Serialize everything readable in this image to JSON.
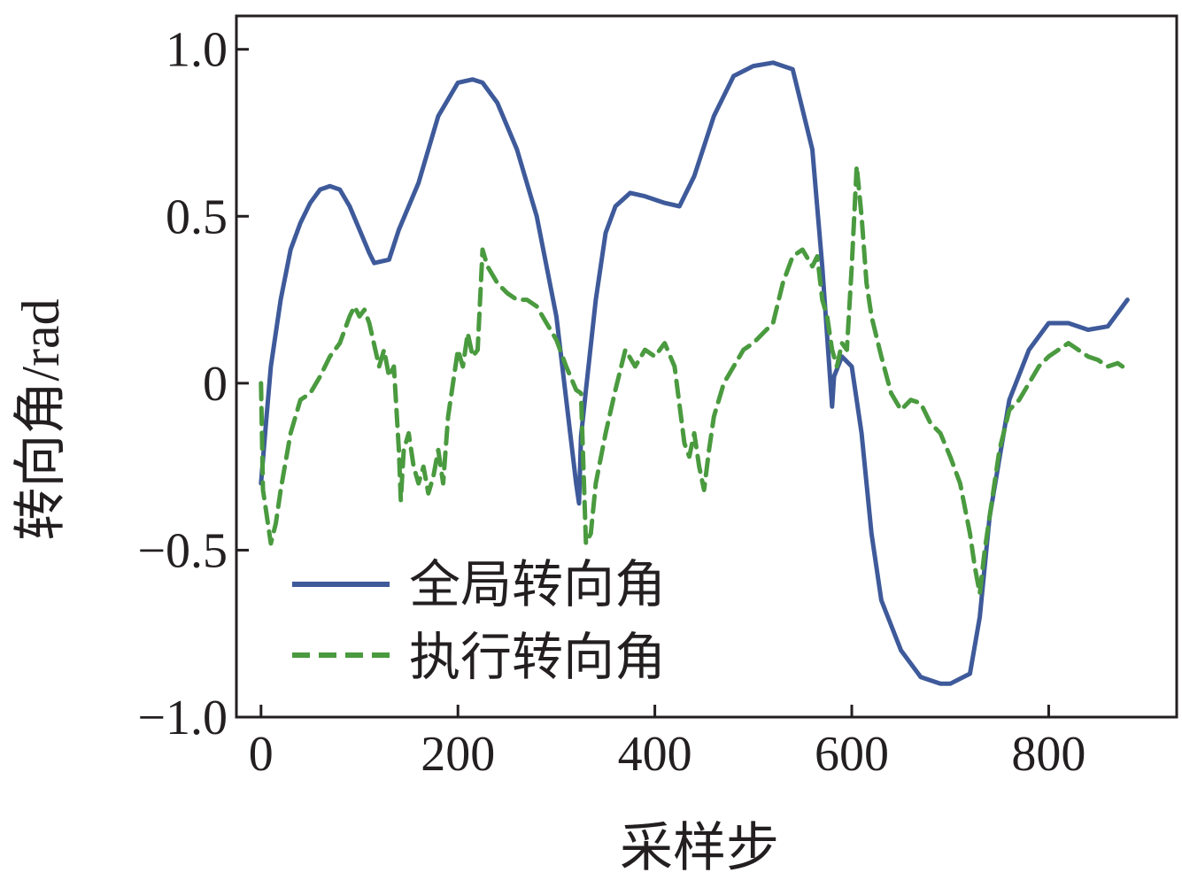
{
  "chart_data": {
    "type": "line",
    "xlabel": "采样步",
    "ylabel": "转向角/rad",
    "xlim": [
      -25,
      930
    ],
    "ylim": [
      -1.0,
      1.1
    ],
    "x_ticks": [
      "0",
      "200",
      "400",
      "600",
      "800"
    ],
    "x_tick_values": [
      0,
      200,
      400,
      600,
      800
    ],
    "y_ticks": [
      "1.0",
      "0.5",
      "0",
      "−0.5",
      "−1.0"
    ],
    "y_tick_values": [
      1.0,
      0.5,
      0,
      -0.5,
      -1.0
    ],
    "legend_position": "lower-left",
    "grid": false,
    "series": [
      {
        "name": "全局转向角",
        "style": "solid",
        "color": "#3e5a9a",
        "x": [
          0,
          5,
          10,
          20,
          30,
          40,
          50,
          60,
          70,
          80,
          90,
          100,
          110,
          115,
          130,
          140,
          160,
          180,
          200,
          215,
          225,
          240,
          260,
          280,
          300,
          320,
          323,
          325,
          330,
          340,
          350,
          360,
          375,
          390,
          410,
          425,
          440,
          460,
          480,
          500,
          520,
          540,
          560,
          570,
          580,
          582,
          590,
          600,
          610,
          620,
          630,
          650,
          670,
          690,
          700,
          720,
          730,
          740,
          760,
          780,
          800,
          820,
          840,
          860,
          880
        ],
        "y": [
          -0.3,
          -0.12,
          0.05,
          0.25,
          0.4,
          0.48,
          0.54,
          0.58,
          0.59,
          0.58,
          0.53,
          0.46,
          0.39,
          0.36,
          0.37,
          0.46,
          0.6,
          0.8,
          0.9,
          0.91,
          0.9,
          0.84,
          0.7,
          0.5,
          0.2,
          -0.3,
          -0.36,
          -0.16,
          -0.02,
          0.25,
          0.45,
          0.53,
          0.57,
          0.56,
          0.54,
          0.53,
          0.62,
          0.8,
          0.92,
          0.95,
          0.96,
          0.94,
          0.7,
          0.35,
          -0.07,
          0.02,
          0.08,
          0.05,
          -0.15,
          -0.45,
          -0.65,
          -0.8,
          -0.88,
          -0.9,
          -0.9,
          -0.87,
          -0.7,
          -0.4,
          -0.05,
          0.1,
          0.18,
          0.18,
          0.16,
          0.17,
          0.25
        ]
      },
      {
        "name": "执行转向角",
        "style": "dashed",
        "color": "#4a9a3f",
        "x": [
          0,
          2,
          5,
          10,
          15,
          20,
          30,
          40,
          50,
          60,
          70,
          80,
          90,
          95,
          100,
          105,
          110,
          120,
          125,
          130,
          135,
          140,
          142,
          145,
          150,
          155,
          160,
          165,
          170,
          175,
          180,
          185,
          190,
          200,
          205,
          210,
          215,
          220,
          225,
          230,
          240,
          250,
          260,
          270,
          280,
          290,
          300,
          310,
          320,
          325,
          330,
          335,
          340,
          350,
          360,
          370,
          380,
          390,
          400,
          410,
          420,
          430,
          435,
          440,
          445,
          450,
          455,
          460,
          470,
          480,
          490,
          500,
          510,
          520,
          530,
          540,
          550,
          560,
          565,
          570,
          575,
          580,
          585,
          590,
          595,
          600,
          605,
          610,
          615,
          620,
          630,
          640,
          650,
          660,
          670,
          680,
          690,
          700,
          710,
          720,
          725,
          730,
          735,
          740,
          750,
          760,
          770,
          780,
          790,
          800,
          810,
          820,
          830,
          840,
          850,
          860,
          870,
          880
        ],
        "y": [
          0.0,
          -0.32,
          -0.38,
          -0.48,
          -0.42,
          -0.32,
          -0.15,
          -0.05,
          -0.03,
          0.02,
          0.08,
          0.12,
          0.2,
          0.23,
          0.2,
          0.22,
          0.18,
          0.05,
          0.1,
          0.02,
          0.05,
          -0.2,
          -0.35,
          -0.2,
          -0.15,
          -0.25,
          -0.3,
          -0.25,
          -0.33,
          -0.28,
          -0.2,
          -0.3,
          -0.1,
          0.1,
          0.05,
          0.15,
          0.08,
          0.1,
          0.4,
          0.35,
          0.3,
          0.27,
          0.25,
          0.25,
          0.23,
          0.18,
          0.13,
          0.05,
          -0.02,
          -0.03,
          -0.48,
          -0.45,
          -0.3,
          -0.15,
          -0.02,
          0.1,
          0.05,
          0.1,
          0.08,
          0.12,
          0.05,
          -0.18,
          -0.22,
          -0.15,
          -0.25,
          -0.32,
          -0.2,
          -0.1,
          0.0,
          0.05,
          0.1,
          0.12,
          0.15,
          0.18,
          0.3,
          0.38,
          0.4,
          0.35,
          0.38,
          0.25,
          0.2,
          0.1,
          0.05,
          0.12,
          0.1,
          0.35,
          0.65,
          0.5,
          0.3,
          0.2,
          0.08,
          -0.03,
          -0.08,
          -0.05,
          -0.06,
          -0.12,
          -0.15,
          -0.22,
          -0.3,
          -0.45,
          -0.55,
          -0.63,
          -0.5,
          -0.4,
          -0.2,
          -0.08,
          -0.05,
          0.0,
          0.05,
          0.08,
          0.1,
          0.12,
          0.1,
          0.08,
          0.07,
          0.05,
          0.06,
          0.04
        ]
      }
    ]
  }
}
